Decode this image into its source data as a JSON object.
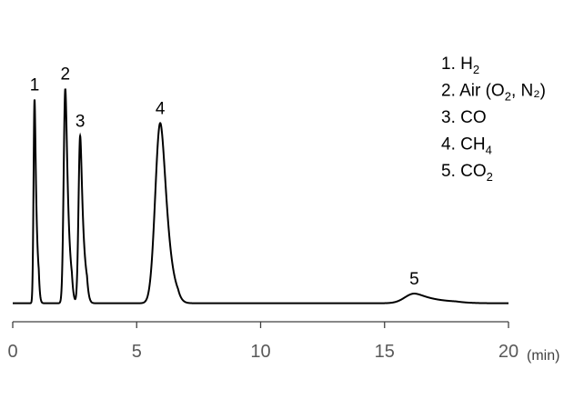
{
  "chart_data": {
    "type": "line",
    "title": "",
    "xlabel": "(min)",
    "ylabel": "",
    "xlim": [
      0,
      20
    ],
    "x_ticks": [
      "0",
      "5",
      "10",
      "15",
      "20"
    ],
    "grid": false,
    "baseline": 0.01,
    "peaks": [
      {
        "label": "1",
        "name": "H",
        "sub": "2",
        "suffix": "",
        "rt": 0.88,
        "height": 0.95,
        "width": 0.04,
        "tail": 0.05
      },
      {
        "label": "2",
        "name": "Air (O",
        "sub": "2",
        "suffix": ", N₂)",
        "rt": 2.12,
        "height": 1.0,
        "width": 0.065,
        "tail": 0.07
      },
      {
        "label": "3",
        "name": "CO",
        "sub": "",
        "suffix": "",
        "rt": 2.72,
        "height": 0.78,
        "width": 0.065,
        "tail": 0.08
      },
      {
        "label": "4",
        "name": "CH",
        "sub": "4",
        "suffix": "",
        "rt": 5.95,
        "height": 0.84,
        "width": 0.2,
        "tail": 0.12
      },
      {
        "label": "5",
        "name": "CO",
        "sub": "2",
        "suffix": "",
        "rt": 16.2,
        "height": 0.045,
        "width": 0.38,
        "tail": 0.55
      }
    ],
    "legend_location": "top-right",
    "line_color": "#000000",
    "axis_color": "#404040"
  }
}
